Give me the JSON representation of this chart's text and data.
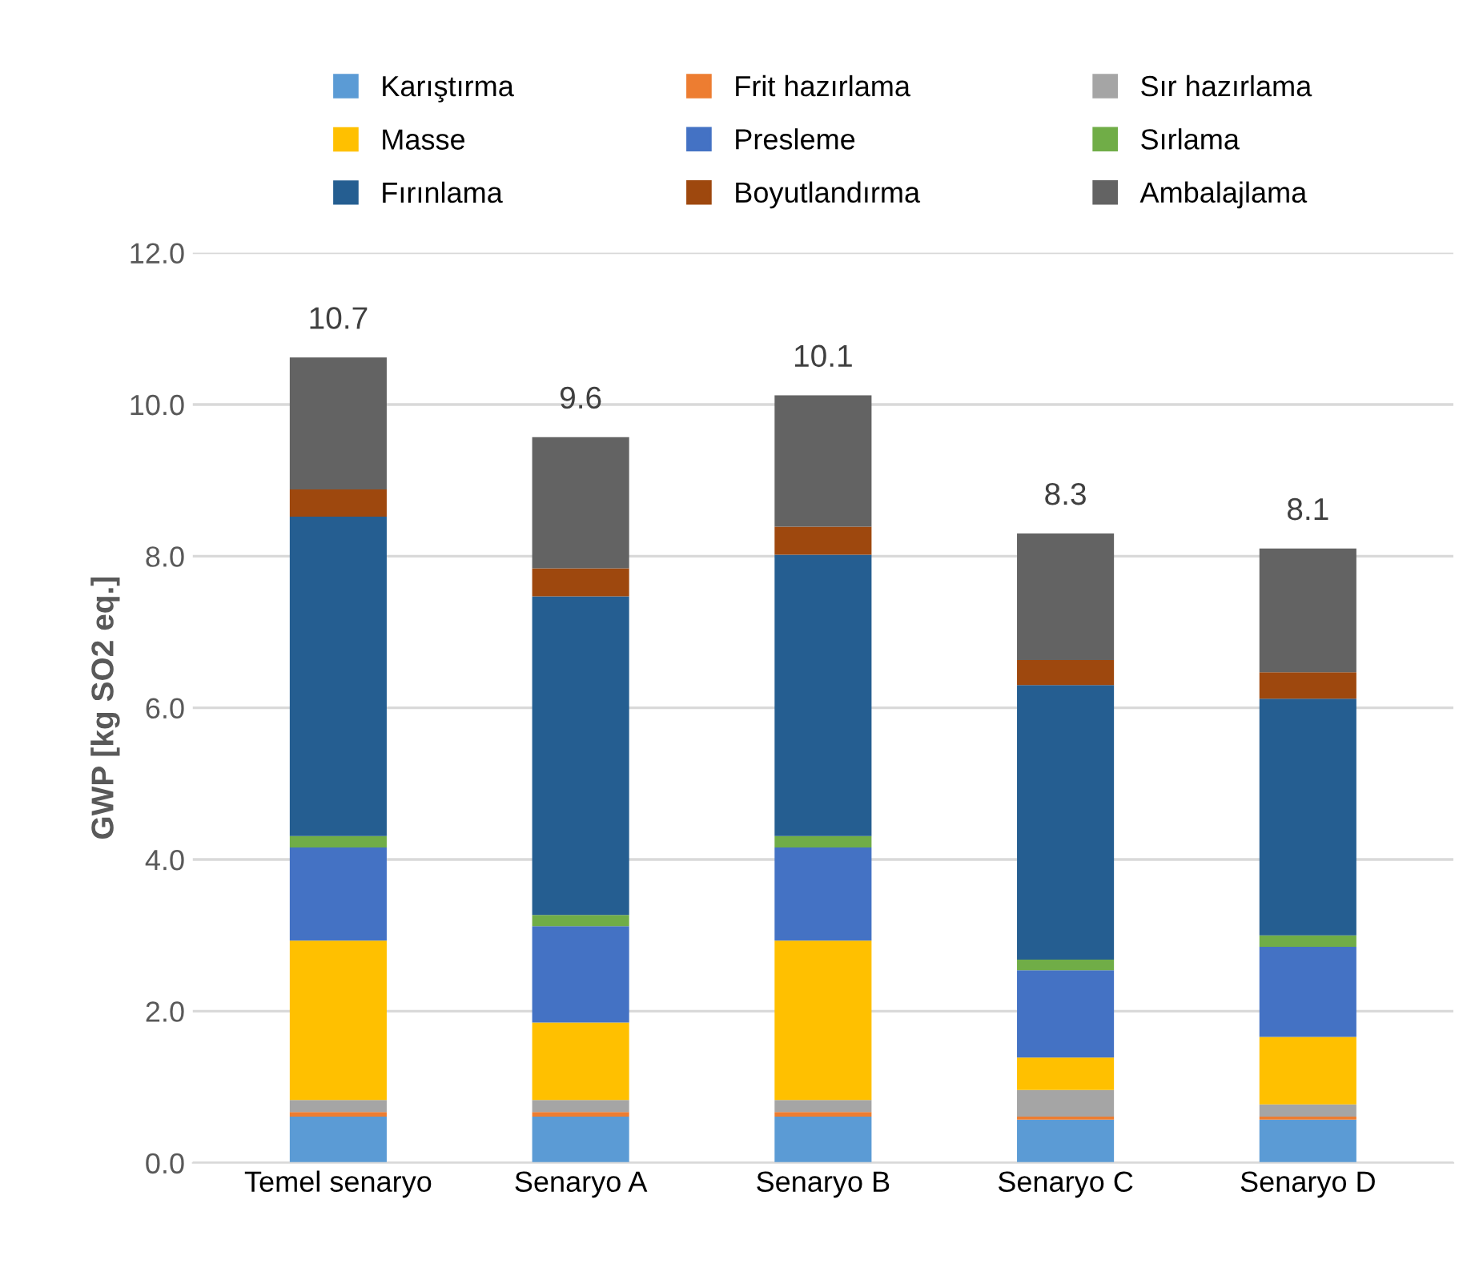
{
  "chart_data": {
    "type": "bar",
    "stacked": true,
    "ylabel": "GWP [kg SO2 eq.]",
    "categories": [
      "Temel senaryo",
      "Senaryo A",
      "Senaryo B",
      "Senaryo C",
      "Senaryo D"
    ],
    "series": [
      {
        "name": "Karıştırma",
        "color": "#5b9bd5",
        "values": [
          0.61,
          0.61,
          0.61,
          0.57,
          0.57
        ]
      },
      {
        "name": "Frit hazırlama",
        "color": "#ed7d31",
        "values": [
          0.06,
          0.06,
          0.06,
          0.04,
          0.04
        ]
      },
      {
        "name": "Sır hazırlama",
        "color": "#a5a5a5",
        "values": [
          0.16,
          0.16,
          0.16,
          0.35,
          0.16
        ]
      },
      {
        "name": "Masse",
        "color": "#ffc000",
        "values": [
          2.1,
          1.02,
          2.1,
          0.43,
          0.89
        ]
      },
      {
        "name": "Presleme",
        "color": "#4472c4",
        "values": [
          1.23,
          1.27,
          1.23,
          1.15,
          1.19
        ]
      },
      {
        "name": "Sırlama",
        "color": "#70ad47",
        "values": [
          0.15,
          0.15,
          0.15,
          0.14,
          0.15
        ]
      },
      {
        "name": "Fırınlama",
        "color": "#255e91",
        "values": [
          4.21,
          4.2,
          3.71,
          3.62,
          3.12
        ]
      },
      {
        "name": "Boyutlandırma",
        "color": "#9e480e",
        "values": [
          0.36,
          0.37,
          0.37,
          0.33,
          0.35
        ]
      },
      {
        "name": "Ambalajlama",
        "color": "#636363",
        "values": [
          1.74,
          1.73,
          1.73,
          1.67,
          1.63
        ]
      }
    ],
    "totals": [
      "10.7",
      "9.6",
      "10.1",
      "8.3",
      "8.1"
    ],
    "ylim": [
      0,
      12
    ],
    "yticks": [
      {
        "value": 0,
        "label": "0.0"
      },
      {
        "value": 2,
        "label": "2.0"
      },
      {
        "value": 4,
        "label": "4.0"
      },
      {
        "value": 6,
        "label": "6.0"
      },
      {
        "value": 8,
        "label": "8.0"
      },
      {
        "value": 10,
        "label": "10.0"
      },
      {
        "value": 12,
        "label": "12.0"
      }
    ],
    "grid": "y",
    "legend": "top"
  }
}
